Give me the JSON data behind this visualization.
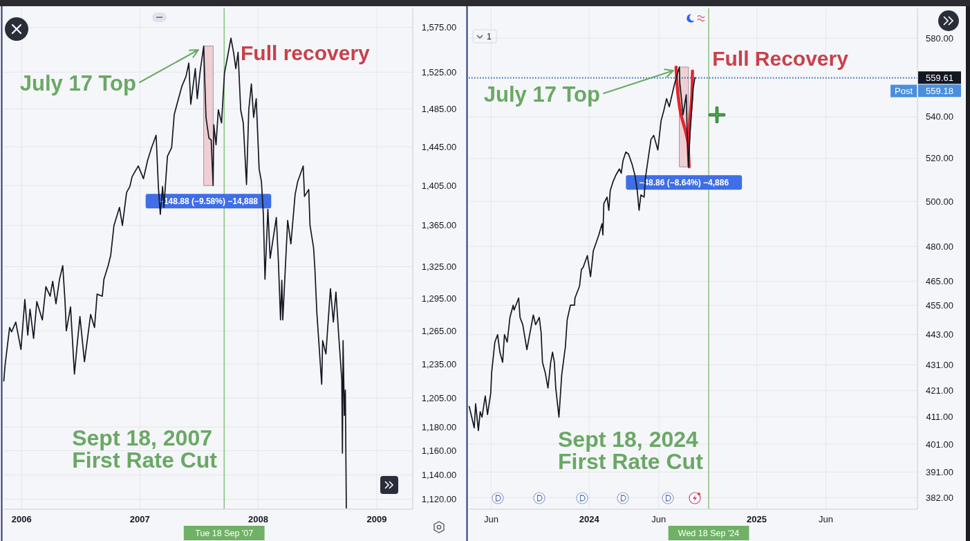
{
  "chart_data": [
    {
      "type": "line",
      "log": "y",
      "grid": true,
      "xlim": [
        "2005-11-06",
        "2009-04-22"
      ],
      "ylim": [
        1112,
        1597
      ],
      "xticks": [
        {
          "value": "2006-01-01",
          "label": "2006"
        },
        {
          "value": "2007-01-01",
          "label": "2007"
        },
        {
          "value": "2008-01-01",
          "label": "2008"
        },
        {
          "value": "2009-01-01",
          "label": "2009"
        }
      ],
      "yticks": [
        {
          "value": 1120,
          "label": "1,120.00"
        },
        {
          "value": 1140,
          "label": "1,140.00"
        },
        {
          "value": 1160,
          "label": "1,160.00"
        },
        {
          "value": 1180,
          "label": "1,180.00"
        },
        {
          "value": 1205,
          "label": "1,205.00"
        },
        {
          "value": 1235,
          "label": "1,235.00"
        },
        {
          "value": 1265,
          "label": "1,265.00"
        },
        {
          "value": 1295,
          "label": "1,295.00"
        },
        {
          "value": 1325,
          "label": "1,325.00"
        },
        {
          "value": 1365,
          "label": "1,365.00"
        },
        {
          "value": 1405,
          "label": "1,405.00"
        },
        {
          "value": 1445,
          "label": "1,445.00"
        },
        {
          "value": 1485,
          "label": "1,485.00"
        },
        {
          "value": 1525,
          "label": "1,525.00"
        },
        {
          "value": 1575,
          "label": "1,575.00"
        }
      ],
      "x": [
        "2005-11-07",
        "2005-11-11",
        "2005-11-25",
        "2005-12-01",
        "2005-12-14",
        "2005-12-30",
        "2006-01-11",
        "2006-01-20",
        "2006-01-27",
        "2006-02-07",
        "2006-02-17",
        "2006-03-06",
        "2006-03-17",
        "2006-03-30",
        "2006-04-07",
        "2006-04-17",
        "2006-04-28",
        "2006-05-08",
        "2006-05-15",
        "2006-05-19",
        "2006-06-01",
        "2006-06-13",
        "2006-06-21",
        "2006-06-30",
        "2006-07-14",
        "2006-08-02",
        "2006-08-14",
        "2006-08-22",
        "2006-09-07",
        "2006-09-12",
        "2006-09-25",
        "2006-10-03",
        "2006-10-13",
        "2006-10-30",
        "2006-11-08",
        "2006-11-21",
        "2006-12-01",
        "2006-12-08",
        "2006-12-27",
        "2007-01-12",
        "2007-01-25",
        "2007-02-06",
        "2007-02-20",
        "2007-02-23",
        "2007-02-27",
        "2007-03-05",
        "2007-03-12",
        "2007-03-16",
        "2007-03-27",
        "2007-04-09",
        "2007-04-17",
        "2007-04-30",
        "2007-05-11",
        "2007-05-23",
        "2007-06-01",
        "2007-06-07",
        "2007-06-21",
        "2007-06-27",
        "2007-07-06",
        "2007-07-17",
        "2007-07-20",
        "2007-07-24",
        "2007-08-02",
        "2007-08-09",
        "2007-08-15",
        "2007-08-17",
        "2007-08-24",
        "2007-08-31",
        "2007-09-10",
        "2007-09-19",
        "2007-09-28",
        "2007-10-09",
        "2007-10-17",
        "2007-10-24",
        "2007-10-31",
        "2007-11-08",
        "2007-11-16",
        "2007-11-26",
        "2007-12-03",
        "2007-12-11",
        "2007-12-18",
        "2007-12-26",
        "2008-01-04",
        "2008-01-11",
        "2008-01-17",
        "2008-01-22",
        "2008-01-31",
        "2008-02-07",
        "2008-02-26",
        "2008-03-03",
        "2008-03-10",
        "2008-03-14",
        "2008-03-17",
        "2008-04-01",
        "2008-04-11",
        "2008-04-24",
        "2008-05-02",
        "2008-05-19",
        "2008-05-23",
        "2008-06-05",
        "2008-06-09",
        "2008-06-20",
        "2008-06-24",
        "2008-06-30",
        "2008-07-15",
        "2008-07-18",
        "2008-07-28",
        "2008-08-11",
        "2008-08-20",
        "2008-08-28",
        "2008-09-05",
        "2008-09-15",
        "2008-09-17",
        "2008-09-19",
        "2008-09-23",
        "2008-09-26",
        "2008-09-29"
      ],
      "series": [
        {
          "color": "#131722",
          "values": [
            1220,
            1234,
            1268,
            1264,
            1273,
            1248,
            1294,
            1261,
            1285,
            1258,
            1292,
            1275,
            1306,
            1297,
            1311,
            1290,
            1313,
            1326,
            1292,
            1265,
            1287,
            1226,
            1251,
            1278,
            1237,
            1280,
            1268,
            1299,
            1297,
            1313,
            1326,
            1336,
            1365,
            1383,
            1365,
            1398,
            1404,
            1414,
            1425,
            1412,
            1431,
            1444,
            1457,
            1435,
            1404,
            1376,
            1404,
            1383,
            1435,
            1444,
            1479,
            1496,
            1510,
            1520,
            1535,
            1490,
            1529,
            1496,
            1526,
            1554,
            1518,
            1476,
            1454,
            1452,
            1405,
            1468,
            1447,
            1484,
            1470,
            1524,
            1541,
            1563,
            1547,
            1529,
            1547,
            1484,
            1470,
            1406,
            1484,
            1512,
            1476,
            1496,
            1422,
            1409,
            1376,
            1313,
            1381,
            1333,
            1373,
            1333,
            1275,
            1312,
            1275,
            1370,
            1347,
            1396,
            1409,
            1425,
            1394,
            1401,
            1365,
            1343,
            1323,
            1282,
            1217,
            1256,
            1244,
            1304,
            1273,
            1301,
            1263,
            1221,
            1158,
            1256,
            1190,
            1212,
            1113
          ]
        }
      ],
      "ref_lines": [
        {
          "axis": "x",
          "value": "2007-09-18",
          "label": "Tue 18 Sep '07",
          "color": "#6fb266"
        }
      ],
      "bands": [
        {
          "axis": "x",
          "from": "2007-07-17",
          "to": "2007-08-15",
          "label": "−148.88 (−9.58%) −14,888",
          "color": "#efcfd4"
        }
      ],
      "annotations": [
        "July 17 Top",
        {
          "text": "Full recovery",
          "x": "2007-10-09",
          "y": 1563
        },
        {
          "text": "Sept 18, 2007\nFirst Rate Cut",
          "x": "2007-09-18",
          "y": 1170
        }
      ]
    },
    {
      "type": "line",
      "log": "y",
      "grid": true,
      "xlim": [
        "2023-04-13",
        "2025-12-18"
      ],
      "ylim": [
        378,
        596
      ],
      "xticks": [
        {
          "value": "2023-06-01",
          "label": "Jun"
        },
        {
          "value": "2024-01-01",
          "label": "2024"
        },
        {
          "value": "2024-06-01",
          "label": "Jun"
        },
        {
          "value": "2025-01-01",
          "label": "2025"
        },
        {
          "value": "2025-06-01",
          "label": "Jun"
        }
      ],
      "yticks": [
        {
          "value": 382,
          "label": "382.00"
        },
        {
          "value": 391,
          "label": "391.00"
        },
        {
          "value": 401,
          "label": "401.00"
        },
        {
          "value": 411,
          "label": "411.00"
        },
        {
          "value": 421,
          "label": "421.00"
        },
        {
          "value": 431,
          "label": "431.00"
        },
        {
          "value": 443,
          "label": "443.00"
        },
        {
          "value": 455,
          "label": "455.00"
        },
        {
          "value": 465,
          "label": "465.00"
        },
        {
          "value": 480,
          "label": "480.00"
        },
        {
          "value": 500,
          "label": "500.00"
        },
        {
          "value": 520,
          "label": "520.00"
        },
        {
          "value": 540,
          "label": "540.00"
        },
        {
          "value": 580,
          "label": "580.00"
        }
      ],
      "x": [
        "2023-04-14",
        "2023-04-25",
        "2023-04-28",
        "2023-05-04",
        "2023-05-08",
        "2023-05-12",
        "2023-05-19",
        "2023-05-24",
        "2023-05-31",
        "2023-06-02",
        "2023-06-09",
        "2023-06-15",
        "2023-06-20",
        "2023-06-26",
        "2023-06-30",
        "2023-07-06",
        "2023-07-12",
        "2023-07-19",
        "2023-07-21",
        "2023-07-31",
        "2023-08-03",
        "2023-08-09",
        "2023-08-18",
        "2023-08-22",
        "2023-09-01",
        "2023-09-06",
        "2023-09-14",
        "2023-09-18",
        "2023-09-21",
        "2023-09-27",
        "2023-10-03",
        "2023-10-09",
        "2023-10-13",
        "2023-10-17",
        "2023-10-20",
        "2023-10-27",
        "2023-11-02",
        "2023-11-07",
        "2023-11-10",
        "2023-11-14",
        "2023-11-21",
        "2023-11-30",
        "2023-12-01",
        "2023-12-11",
        "2023-12-15",
        "2023-12-19",
        "2023-12-28",
        "2024-01-04",
        "2024-01-10",
        "2024-01-22",
        "2024-01-29",
        "2024-01-31",
        "2024-02-02",
        "2024-02-09",
        "2024-02-13",
        "2024-02-16",
        "2024-02-22",
        "2024-02-28",
        "2024-03-07",
        "2024-03-11",
        "2024-03-15",
        "2024-03-21",
        "2024-03-27",
        "2024-04-04",
        "2024-04-10",
        "2024-04-15",
        "2024-04-19",
        "2024-04-23",
        "2024-04-30",
        "2024-05-03",
        "2024-05-09",
        "2024-05-15",
        "2024-05-21",
        "2024-05-30",
        "2024-06-03",
        "2024-06-06",
        "2024-06-12",
        "2024-06-18",
        "2024-06-24",
        "2024-06-28",
        "2024-07-05",
        "2024-07-16",
        "2024-07-17",
        "2024-07-24",
        "2024-07-31",
        "2024-08-02",
        "2024-08-05",
        "2024-08-08",
        "2024-08-15",
        "2024-08-19"
      ],
      "series": [
        {
          "color": "#131722",
          "values": [
            415,
            407,
            416,
            406,
            413,
            411,
            419,
            412,
            420,
            428,
            440,
            443,
            436,
            432,
            443,
            440,
            450,
            455,
            453,
            458,
            450,
            447,
            437,
            441,
            451,
            447,
            450,
            444,
            432,
            428,
            422,
            432,
            436,
            432,
            422,
            411,
            427,
            434,
            438,
            449,
            455,
            455,
            458,
            463,
            470,
            471,
            476,
            467,
            478,
            485,
            490,
            485,
            499,
            502,
            496,
            505,
            509,
            512,
            515,
            513,
            519,
            523,
            522,
            517,
            512,
            505,
            496,
            503,
            502,
            511,
            520,
            529,
            531,
            524,
            532,
            538,
            543,
            549,
            545,
            549,
            556,
            565,
            557,
            541,
            551,
            533,
            516,
            531,
            554,
            559.61
          ]
        }
      ],
      "ref_lines": [
        {
          "axis": "x",
          "value": "2024-09-18",
          "label": "Wed 18 Sep '24",
          "color": "#6fb266"
        },
        {
          "axis": "y",
          "value": 559.61,
          "label": "559.61",
          "color": "#131722",
          "line_style": "dotted"
        },
        {
          "axis": "y",
          "value": 559.18,
          "label": "559.18",
          "color": "#4a8fdd",
          "line_style": "dotted"
        }
      ],
      "bands": [
        {
          "axis": "x",
          "from": "2024-07-16",
          "to": "2024-08-05",
          "label": "−48.86 (−8.64%) −4,886",
          "color": "#efcfd4"
        }
      ],
      "annotations": [
        "July 17 Top",
        {
          "text": "Full Recovery",
          "x": "2024-08-19",
          "y": 559.61
        },
        {
          "text": "Sept 18, 2024\nFirst Rate Cut",
          "x": "2024-09-18",
          "y": 402
        },
        "1",
        "Post"
      ]
    }
  ]
}
